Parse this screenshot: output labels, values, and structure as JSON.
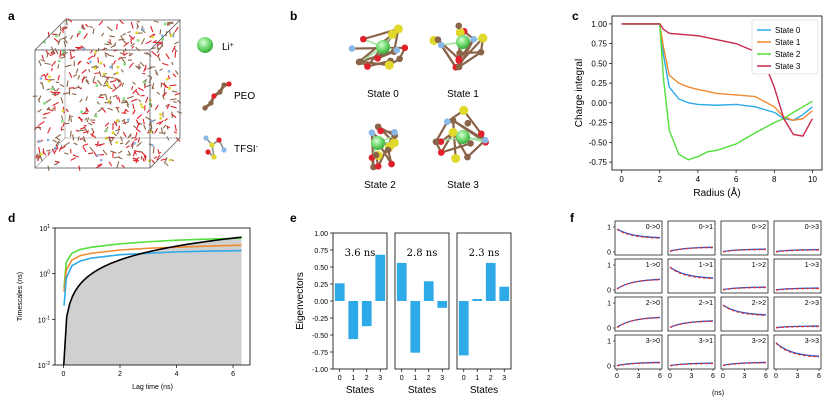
{
  "panels": {
    "a": {
      "label": "a",
      "legend": [
        {
          "label": "Li",
          "sup": "+",
          "icon": "lithium-ion-sphere"
        },
        {
          "label": "PEO",
          "sup": "",
          "icon": "peo-chain-molecule"
        },
        {
          "label": "TFSI",
          "sup": "-",
          "icon": "tfsi-anion-molecule"
        }
      ]
    },
    "b": {
      "label": "b",
      "states": [
        "State 0",
        "State 1",
        "State 2",
        "State 3"
      ]
    },
    "c": {
      "label": "c"
    },
    "d": {
      "label": "d"
    },
    "e": {
      "label": "e",
      "times": [
        "3.6 ns",
        "2.8 ns",
        "2.3 ns"
      ]
    },
    "f": {
      "label": "f"
    }
  },
  "colors": {
    "state0": "#2eaae8",
    "state1": "#f08a30",
    "state2": "#52e03a",
    "state3": "#c8284c",
    "bars": "#2eaae8",
    "black": "#000000",
    "gray_fill": "#d0d0d0",
    "li": "#7fe07f",
    "oxygen": "#e0202a",
    "carbon": "#8a6448",
    "sulfur": "#e0d82a",
    "fluorine": "#8ab8e8"
  },
  "chart_data": [
    {
      "id": "c",
      "type": "line",
      "xlabel": "Radius (Å)",
      "ylabel": "Charge integral",
      "xlim": [
        -0.5,
        10.5
      ],
      "ylim": [
        -0.85,
        1.1
      ],
      "xticks": [
        0,
        2,
        4,
        6,
        8,
        10
      ],
      "yticks": [
        "1.00",
        "0.75",
        "0.50",
        "0.25",
        "0.00",
        "-0.25",
        "-0.50",
        "-0.75"
      ],
      "ytick_values": [
        1.0,
        0.75,
        0.5,
        0.25,
        0.0,
        -0.25,
        -0.5,
        -0.75
      ],
      "legend_position": "top-right",
      "series": [
        {
          "name": "State 0",
          "x": [
            0,
            2.0,
            2.2,
            2.5,
            3.0,
            3.5,
            4.0,
            5.0,
            6.0,
            7.0,
            8.0,
            8.5,
            9.0,
            9.5,
            10.0
          ],
          "y": [
            1.0,
            1.0,
            0.6,
            0.2,
            0.05,
            0.0,
            -0.02,
            -0.03,
            -0.02,
            -0.05,
            -0.12,
            -0.2,
            -0.22,
            -0.15,
            -0.05
          ]
        },
        {
          "name": "State 1",
          "x": [
            0,
            2.0,
            2.2,
            2.5,
            3.0,
            3.5,
            4.0,
            5.0,
            6.0,
            7.0,
            8.0,
            8.5,
            9.0,
            9.5,
            10.0
          ],
          "y": [
            1.0,
            1.0,
            0.7,
            0.35,
            0.25,
            0.2,
            0.17,
            0.12,
            0.1,
            0.08,
            -0.05,
            -0.18,
            -0.22,
            -0.2,
            -0.1
          ]
        },
        {
          "name": "State 2",
          "x": [
            0,
            2.0,
            2.2,
            2.5,
            3.0,
            3.5,
            4.0,
            4.5,
            5.0,
            6.0,
            7.0,
            8.0,
            8.5,
            9.0,
            9.5,
            10.0
          ],
          "y": [
            1.0,
            1.0,
            0.3,
            -0.35,
            -0.65,
            -0.72,
            -0.68,
            -0.62,
            -0.6,
            -0.52,
            -0.38,
            -0.25,
            -0.2,
            -0.12,
            -0.05,
            0.02
          ]
        },
        {
          "name": "State 3",
          "x": [
            0,
            2.0,
            2.2,
            2.5,
            3.0,
            3.5,
            4.0,
            5.0,
            6.0,
            7.0,
            7.5,
            8.0,
            8.5,
            9.0,
            9.5,
            10.0
          ],
          "y": [
            1.0,
            1.0,
            0.93,
            0.88,
            0.87,
            0.86,
            0.85,
            0.8,
            0.75,
            0.65,
            0.5,
            0.2,
            -0.2,
            -0.4,
            -0.42,
            -0.2
          ]
        }
      ]
    },
    {
      "id": "d",
      "type": "line",
      "xlabel": "Lag time (ns)",
      "ylabel": "Timescales (ns)",
      "yscale": "log",
      "xlim": [
        -0.3,
        6.6
      ],
      "ylim": [
        0.01,
        10
      ],
      "xticks": [
        0,
        2,
        4,
        6
      ],
      "ytick_exponents": [
        -2,
        -1,
        0,
        1
      ],
      "ytick_base": "10",
      "series": [
        {
          "name": "",
          "color": "#52e03a",
          "x": [
            0.02,
            0.1,
            0.3,
            0.6,
            1,
            2,
            3,
            4,
            5,
            6.3
          ],
          "y": [
            0.5,
            1.8,
            2.8,
            3.4,
            3.8,
            4.5,
            5.0,
            5.4,
            5.7,
            6.0
          ]
        },
        {
          "name": "",
          "color": "#f08a30",
          "x": [
            0.02,
            0.1,
            0.3,
            0.6,
            1,
            2,
            3,
            4,
            5,
            6.3
          ],
          "y": [
            0.4,
            1.2,
            2.0,
            2.5,
            2.8,
            3.3,
            3.6,
            3.8,
            4.0,
            4.2
          ]
        },
        {
          "name": "",
          "color": "#2eaae8",
          "x": [
            0.02,
            0.1,
            0.3,
            0.6,
            1,
            2,
            3,
            4,
            5,
            6.3
          ],
          "y": [
            0.2,
            0.8,
            1.5,
            1.9,
            2.2,
            2.6,
            2.8,
            3.0,
            3.1,
            3.2
          ]
        },
        {
          "name": "",
          "color": "#000000",
          "x": [
            0.01,
            0.05,
            0.1,
            0.2,
            0.5,
            1,
            2,
            3,
            4,
            5,
            6.3
          ],
          "y": [
            0.01,
            0.05,
            0.1,
            0.2,
            0.5,
            1,
            2,
            3,
            4,
            5,
            6.3
          ]
        }
      ]
    },
    {
      "id": "e",
      "type": "bar",
      "xlabel": "States",
      "ylabel": "Eigenvectors",
      "ylim": [
        -1.0,
        1.0
      ],
      "yticks": [
        "1.00",
        "0.75",
        "0.50",
        "0.25",
        "0.00",
        "-0.25",
        "-0.50",
        "-0.75",
        "-1.00"
      ],
      "ytick_values": [
        1.0,
        0.75,
        0.5,
        0.25,
        0.0,
        -0.25,
        -0.5,
        -0.75,
        -1.0
      ],
      "categories": [
        "0",
        "1",
        "2",
        "3"
      ],
      "series": [
        {
          "name": "",
          "values": [
            0.26,
            -0.56,
            -0.37,
            0.68
          ]
        },
        {
          "name": "",
          "values": [
            0.56,
            -0.76,
            0.29,
            -0.1
          ]
        },
        {
          "name": "",
          "values": [
            -0.8,
            0.03,
            0.56,
            0.21
          ]
        }
      ]
    },
    {
      "id": "f",
      "type": "line",
      "xlabel": "(ns)",
      "grid_size": [
        4,
        4
      ],
      "xticks": [
        0,
        3,
        6
      ],
      "yticks": [
        0,
        1
      ],
      "labels": [
        [
          "0->0",
          "0->1",
          "0->2",
          "0->3"
        ],
        [
          "1->0",
          "1->1",
          "1->2",
          "1->3"
        ],
        [
          "2->0",
          "2->1",
          "2->2",
          "2->3"
        ],
        [
          "3->0",
          "3->1",
          "3->2",
          "3->3"
        ]
      ],
      "start": [
        [
          0.92,
          0.04,
          0.02,
          0.02
        ],
        [
          0.05,
          0.92,
          0.02,
          0.01
        ],
        [
          0.03,
          0.03,
          0.92,
          0.02
        ],
        [
          0.02,
          0.02,
          0.03,
          0.93
        ]
      ],
      "end": [
        [
          0.55,
          0.2,
          0.12,
          0.1
        ],
        [
          0.45,
          0.45,
          0.12,
          0.08
        ],
        [
          0.45,
          0.3,
          0.5,
          0.08
        ],
        [
          0.15,
          0.12,
          0.15,
          0.35
        ]
      ]
    }
  ]
}
